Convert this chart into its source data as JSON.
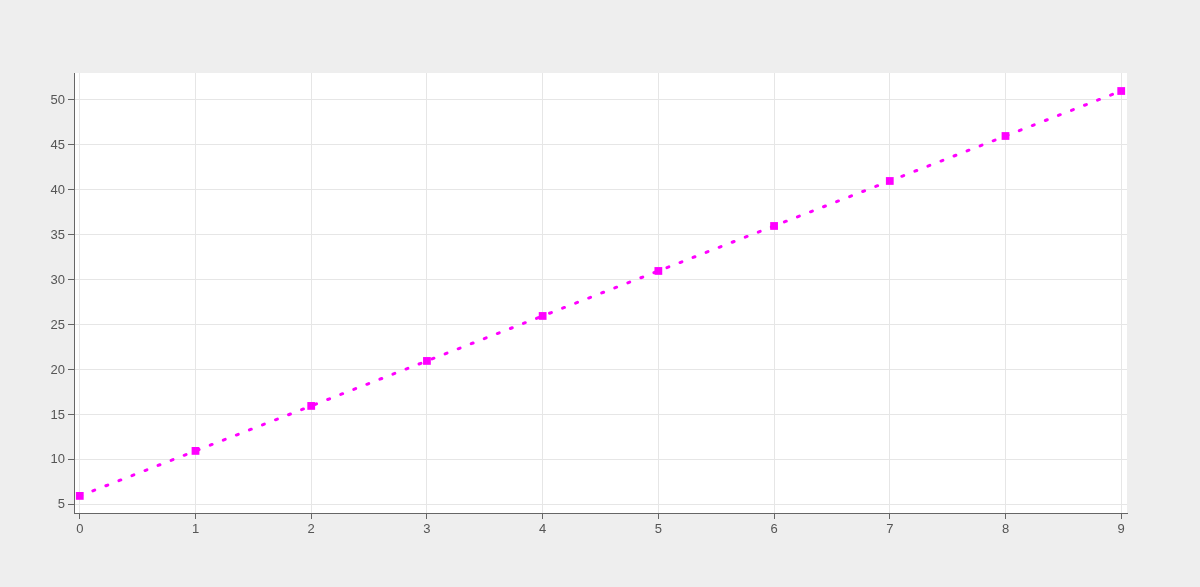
{
  "chart_data": {
    "type": "line",
    "x": [
      0,
      1,
      2,
      3,
      4,
      5,
      6,
      7,
      8,
      9
    ],
    "series": [
      {
        "color": "#ff00ff",
        "values": [
          6,
          11,
          16,
          21,
          26,
          31,
          36,
          41,
          46,
          51
        ]
      }
    ],
    "xlim": [
      -0.05,
      9.05
    ],
    "xticks": [
      0,
      1,
      2,
      3,
      4,
      5,
      6,
      7,
      8,
      9
    ],
    "ylim": [
      4.1,
      53
    ],
    "yticks": [
      5,
      10,
      15,
      20,
      25,
      30,
      35,
      40,
      45,
      50
    ],
    "grid": true,
    "legend": false,
    "marker": "square",
    "line_style": "dotted"
  }
}
